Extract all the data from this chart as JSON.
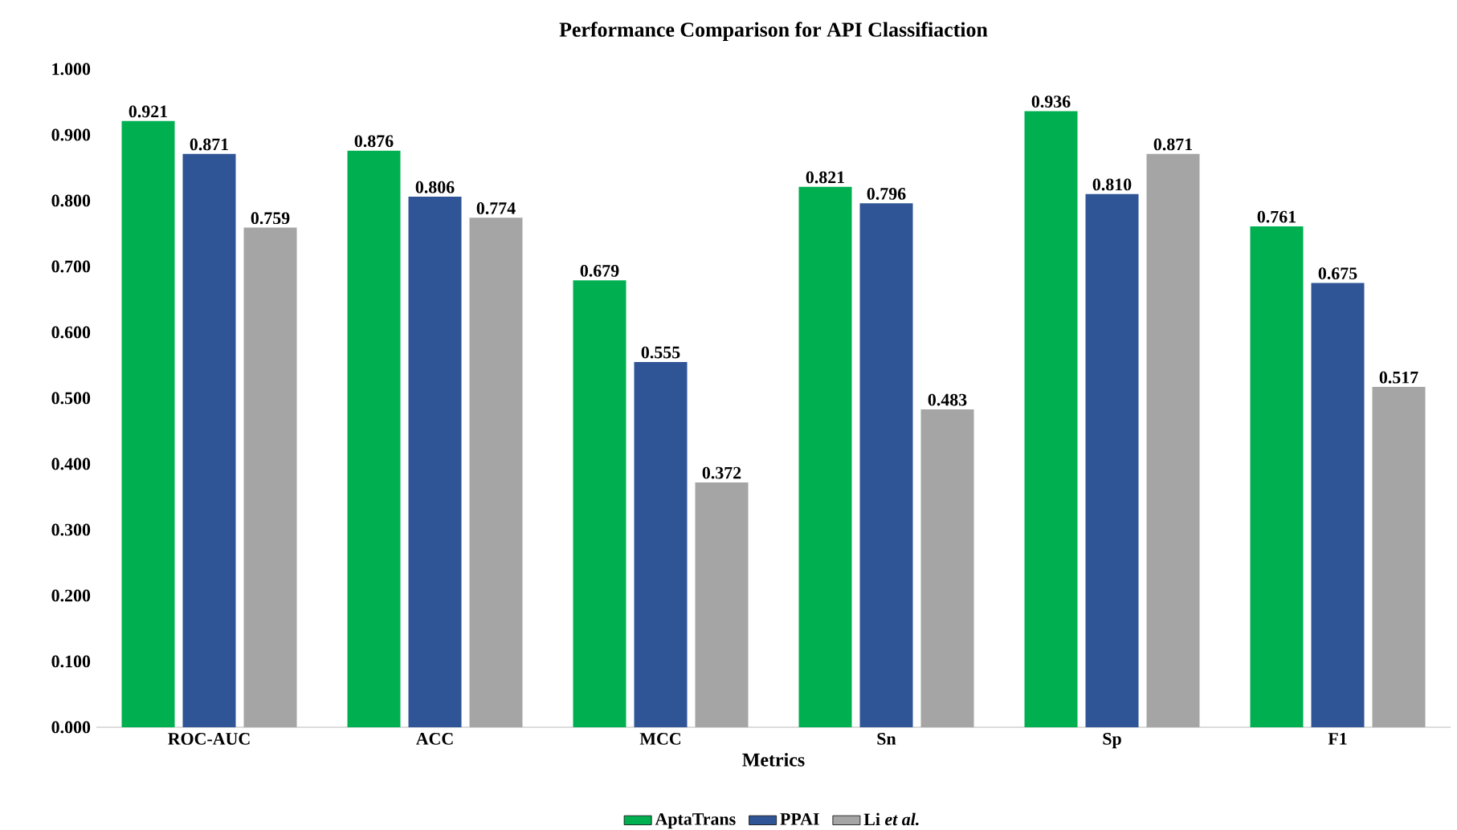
{
  "chart_data": {
    "type": "bar",
    "title": "Performance Comparison for API Classifiaction",
    "xlabel": "Metrics",
    "categories": [
      "ROC-AUC",
      "ACC",
      "MCC",
      "Sn",
      "Sp",
      "F1"
    ],
    "series": [
      {
        "name": "AptaTrans",
        "color": "#00b050",
        "values": [
          0.921,
          0.876,
          0.679,
          0.821,
          0.936,
          0.761
        ],
        "value_labels": [
          "0.921",
          "0.876",
          "0.679",
          "0.821",
          "0.936",
          "0.761"
        ]
      },
      {
        "name": "PPAI",
        "color": "#2f5597",
        "values": [
          0.871,
          0.806,
          0.555,
          0.796,
          0.81,
          0.675
        ],
        "value_labels": [
          "0.871",
          "0.806",
          "0.555",
          "0.796",
          "0.810",
          "0.675"
        ]
      },
      {
        "name": "Li *et al.*",
        "color": "#a5a5a5",
        "values": [
          0.759,
          0.774,
          0.372,
          0.483,
          0.871,
          0.517
        ],
        "value_labels": [
          "0.759",
          "0.774",
          "0.372",
          "0.483",
          "0.871",
          "0.517"
        ]
      }
    ],
    "ylim": [
      0,
      1
    ],
    "yticks": [
      {
        "value": 0,
        "label": "0.000"
      },
      {
        "value": 0.1,
        "label": "0.100"
      },
      {
        "value": 0.2,
        "label": "0.200"
      },
      {
        "value": 0.3,
        "label": "0.300"
      },
      {
        "value": 0.4,
        "label": "0.400"
      },
      {
        "value": 0.5,
        "label": "0.500"
      },
      {
        "value": 0.6,
        "label": "0.600"
      },
      {
        "value": 0.7,
        "label": "0.700"
      },
      {
        "value": 0.8,
        "label": "0.800"
      },
      {
        "value": 0.9,
        "label": "0.900"
      },
      {
        "value": 1,
        "label": "1.000"
      }
    ],
    "legend": "bottom"
  }
}
